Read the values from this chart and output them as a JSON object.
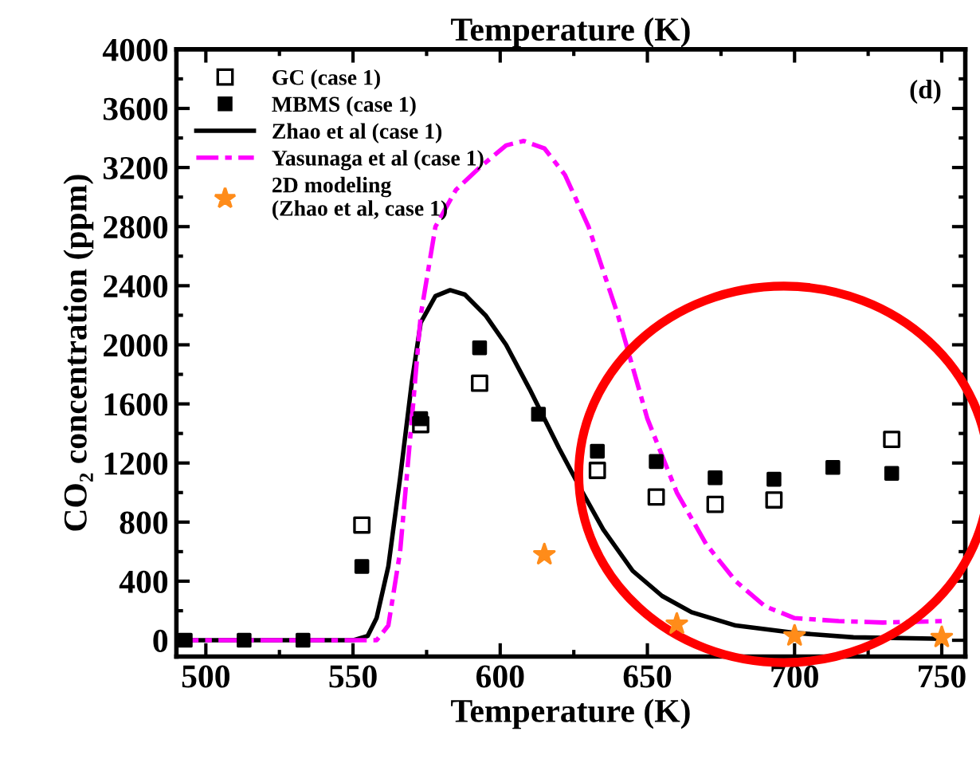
{
  "chart_data": {
    "type": "scatter",
    "title": "Temperature (K)",
    "xlabel": "Temperature (K)",
    "ylabel": "CO₂ concentration (ppm)",
    "xlim": [
      490,
      758
    ],
    "xticks": [
      500,
      550,
      600,
      650,
      700,
      750
    ],
    "ylim": [
      -110,
      4000
    ],
    "yticks": [
      0,
      400,
      800,
      1200,
      1600,
      2000,
      2400,
      2800,
      3200,
      3600,
      4000
    ],
    "grid": false,
    "legend": "top left",
    "annotations": [
      "(d)"
    ],
    "series": [
      {
        "name": "GC (case 1)",
        "marker": "square_open",
        "color": "#000000",
        "x": [
          553,
          573,
          593,
          633,
          653,
          673,
          693,
          733
        ],
        "values": [
          780,
          1460,
          1740,
          1150,
          970,
          920,
          950,
          1360
        ]
      },
      {
        "name": "MBMS (case 1)",
        "marker": "square",
        "color": "#000000",
        "x": [
          493,
          513,
          533,
          553,
          573,
          593,
          613,
          633,
          653,
          673,
          693,
          713,
          733
        ],
        "values": [
          0,
          0,
          0,
          500,
          1500,
          1980,
          1530,
          1280,
          1210,
          1100,
          1090,
          1170,
          1130
        ]
      },
      {
        "name": "Zhao et al (case 1)",
        "type": "line",
        "line_style": "solid",
        "color": "#000000",
        "x": [
          490,
          550,
          555,
          558,
          562,
          566,
          570,
          573,
          578,
          583,
          588,
          595,
          602,
          610,
          620,
          628,
          635,
          645,
          655,
          665,
          680,
          700,
          720,
          750
        ],
        "values": [
          0,
          0,
          30,
          150,
          500,
          1100,
          1750,
          2150,
          2330,
          2370,
          2340,
          2200,
          2000,
          1700,
          1300,
          1000,
          750,
          470,
          300,
          190,
          100,
          50,
          20,
          10
        ]
      },
      {
        "name": "Yasunaga et al (case 1)",
        "type": "line",
        "line_style": "dashdot",
        "color": "#ff00ff",
        "x": [
          490,
          558,
          562,
          566,
          570,
          573,
          578,
          585,
          593,
          602,
          608,
          615,
          622,
          630,
          640,
          650,
          660,
          670,
          680,
          690,
          700,
          715,
          730,
          750
        ],
        "values": [
          0,
          0,
          100,
          600,
          1500,
          2200,
          2800,
          3050,
          3200,
          3350,
          3380,
          3330,
          3150,
          2800,
          2200,
          1500,
          1000,
          650,
          400,
          230,
          150,
          130,
          120,
          130
        ]
      },
      {
        "name": "2D modeling\n(Zhao et al, case 1)",
        "marker": "star",
        "color": "#ff8c1a",
        "x": [
          615,
          660,
          700,
          750
        ],
        "values": [
          580,
          110,
          30,
          20
        ]
      }
    ]
  }
}
